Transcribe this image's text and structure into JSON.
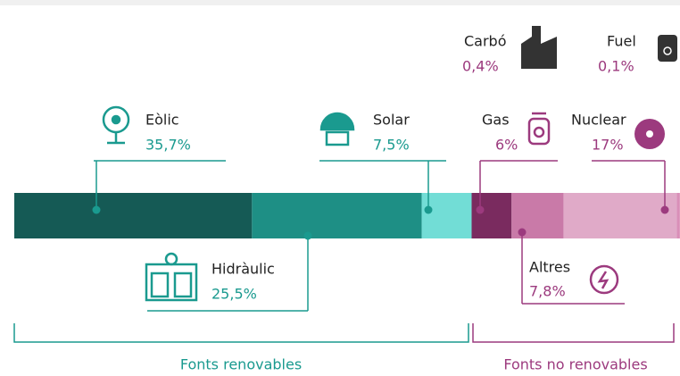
{
  "chart_data": {
    "type": "stacked_bar",
    "categories": [
      "Eòlic",
      "Hidràulic",
      "Solar",
      "Gas",
      "Altres",
      "Nuclear",
      "Carbó",
      "Fuel"
    ],
    "values": [
      35.7,
      25.5,
      7.5,
      6,
      7.8,
      17,
      0.4,
      0.1
    ],
    "value_labels": [
      "35,7%",
      "25,5%",
      "7,5%",
      "6%",
      "7,8%",
      "17%",
      "0,4%",
      "0,1%"
    ],
    "colors": [
      "#155a55",
      "#1e8f85",
      "#72ddd6",
      "#7a2b5f",
      "#c97aa8",
      "#e0aac8",
      "#d98fb8",
      "#d98fb8"
    ],
    "groups": [
      {
        "label": "Fonts renovables",
        "color": "#1a9a8f"
      },
      {
        "label": "Fonts no renovables",
        "color": "#9c3a7e"
      }
    ]
  }
}
